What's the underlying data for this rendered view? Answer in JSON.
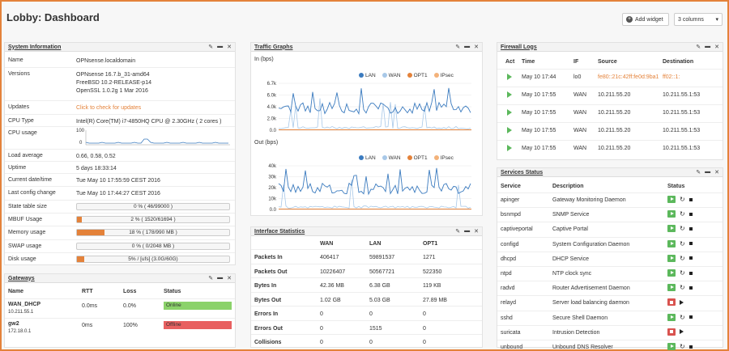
{
  "page": {
    "title": "Lobby: Dashboard",
    "add_widget": "Add widget",
    "columns": "3 columns"
  },
  "sysinfo": {
    "title": "System Information",
    "rows": [
      {
        "label": "Name",
        "value": "OPNsense.localdomain"
      },
      {
        "label": "Versions",
        "lines": [
          "OPNsense 16.7.b_31-amd64",
          "FreeBSD 10.2-RELEASE-p14",
          "OpenSSL 1.0.2g 1 Mar 2016"
        ]
      },
      {
        "label": "Updates",
        "value": "Click to check for updates"
      },
      {
        "label": "CPU Type",
        "value": "Intel(R) Core(TM) i7-4850HQ CPU @ 2.30GHz ( 2 cores )"
      },
      {
        "label": "CPU usage",
        "axis": [
          "100",
          "0"
        ]
      },
      {
        "label": "Load average",
        "value": "0.66, 0.58, 0.52"
      },
      {
        "label": "Uptime",
        "value": "5 days 18:33:14"
      },
      {
        "label": "Current date/time",
        "value": "Tue May 10 17:55:59 CEST 2016"
      },
      {
        "label": "Last config change",
        "value": "Tue May 10 17:44:27 CEST 2016"
      },
      {
        "label": "State table size",
        "value": "0 % ( 46/99000 )",
        "pct": 0
      },
      {
        "label": "MBUF Usage",
        "value": "2 % ( 1520/61694 )",
        "pct": 2
      },
      {
        "label": "Memory usage",
        "value": "18 % ( 178/990 MB )",
        "pct": 18
      },
      {
        "label": "SWAP usage",
        "value": "0 % ( 0/2048 MB )",
        "pct": 0
      },
      {
        "label": "Disk usage",
        "value": "5% / [ufs] (3.0G/60G)",
        "pct": 5
      }
    ]
  },
  "gateways": {
    "title": "Gateways",
    "headers": [
      "Name",
      "RTT",
      "Loss",
      "Status"
    ],
    "rows": [
      {
        "name": "WAN_DHCP",
        "ip": "10.211.55.1",
        "rtt": "0.0ms",
        "loss": "0.0%",
        "status": "Online",
        "color": "#8bd26a"
      },
      {
        "name": "gw2",
        "ip": "172.18.0.1",
        "rtt": "0ms",
        "loss": "100%",
        "status": "Offline",
        "color": "#e86060"
      }
    ]
  },
  "traffic": {
    "title": "Traffic Graphs",
    "in_label": "In (bps)",
    "out_label": "Out (bps)",
    "legend": [
      {
        "name": "LAN",
        "color": "#3b7bbf"
      },
      {
        "name": "WAN",
        "color": "#a8c8e8"
      },
      {
        "name": "OPT1",
        "color": "#e4823a"
      },
      {
        "name": "IPsec",
        "color": "#f3b27a"
      }
    ],
    "in_ticks": [
      "6.7k",
      "6.0k",
      "4.0k",
      "2.0k",
      "0.0"
    ],
    "out_ticks": [
      "40k",
      "30k",
      "20k",
      "10k",
      "0.0"
    ]
  },
  "ifstats": {
    "title": "Interface Statistics",
    "headers": [
      "",
      "WAN",
      "LAN",
      "OPT1"
    ],
    "rows": [
      [
        "Packets In",
        "406417",
        "59891537",
        "1271"
      ],
      [
        "Packets Out",
        "10226407",
        "50567721",
        "522350"
      ],
      [
        "Bytes In",
        "42.36 MB",
        "6.38 GB",
        "119 KB"
      ],
      [
        "Bytes Out",
        "1.02 GB",
        "5.03 GB",
        "27.89 MB"
      ],
      [
        "Errors In",
        "0",
        "0",
        "0"
      ],
      [
        "Errors Out",
        "0",
        "1515",
        "0"
      ],
      [
        "Collisions",
        "0",
        "0",
        "0"
      ]
    ]
  },
  "fwlogs": {
    "title": "Firewall Logs",
    "headers": [
      "Act",
      "Time",
      "IF",
      "Source",
      "Destination"
    ],
    "rows": [
      [
        "May 10 17:44",
        "lo0",
        "fe80::21c:42ff:fe0d:9ba1",
        "ff02::1:"
      ],
      [
        "May 10 17:55",
        "WAN",
        "10.211.55.20",
        "10.211.55.1:53"
      ],
      [
        "May 10 17:55",
        "WAN",
        "10.211.55.20",
        "10.211.55.1:53"
      ],
      [
        "May 10 17:55",
        "WAN",
        "10.211.55.20",
        "10.211.55.1:53"
      ],
      [
        "May 10 17:55",
        "WAN",
        "10.211.55.20",
        "10.211.55.1:53"
      ]
    ]
  },
  "services": {
    "title": "Services Status",
    "headers": [
      "Service",
      "Description",
      "Status"
    ],
    "rows": [
      {
        "name": "apinger",
        "desc": "Gateway Monitoring Daemon",
        "running": true
      },
      {
        "name": "bsnmpd",
        "desc": "SNMP Service",
        "running": true
      },
      {
        "name": "captiveportal",
        "desc": "Captive Portal",
        "running": true
      },
      {
        "name": "configd",
        "desc": "System Configuration Daemon",
        "running": true
      },
      {
        "name": "dhcpd",
        "desc": "DHCP Service",
        "running": true
      },
      {
        "name": "ntpd",
        "desc": "NTP clock sync",
        "running": true
      },
      {
        "name": "radvd",
        "desc": "Router Advertisement Daemon",
        "running": true
      },
      {
        "name": "relayd",
        "desc": "Server load balancing daemon",
        "running": false
      },
      {
        "name": "sshd",
        "desc": "Secure Shell Daemon",
        "running": true
      },
      {
        "name": "suricata",
        "desc": "Intrusion Detection",
        "running": false
      },
      {
        "name": "unbound",
        "desc": "Unbound DNS Resolver",
        "running": true
      }
    ]
  }
}
